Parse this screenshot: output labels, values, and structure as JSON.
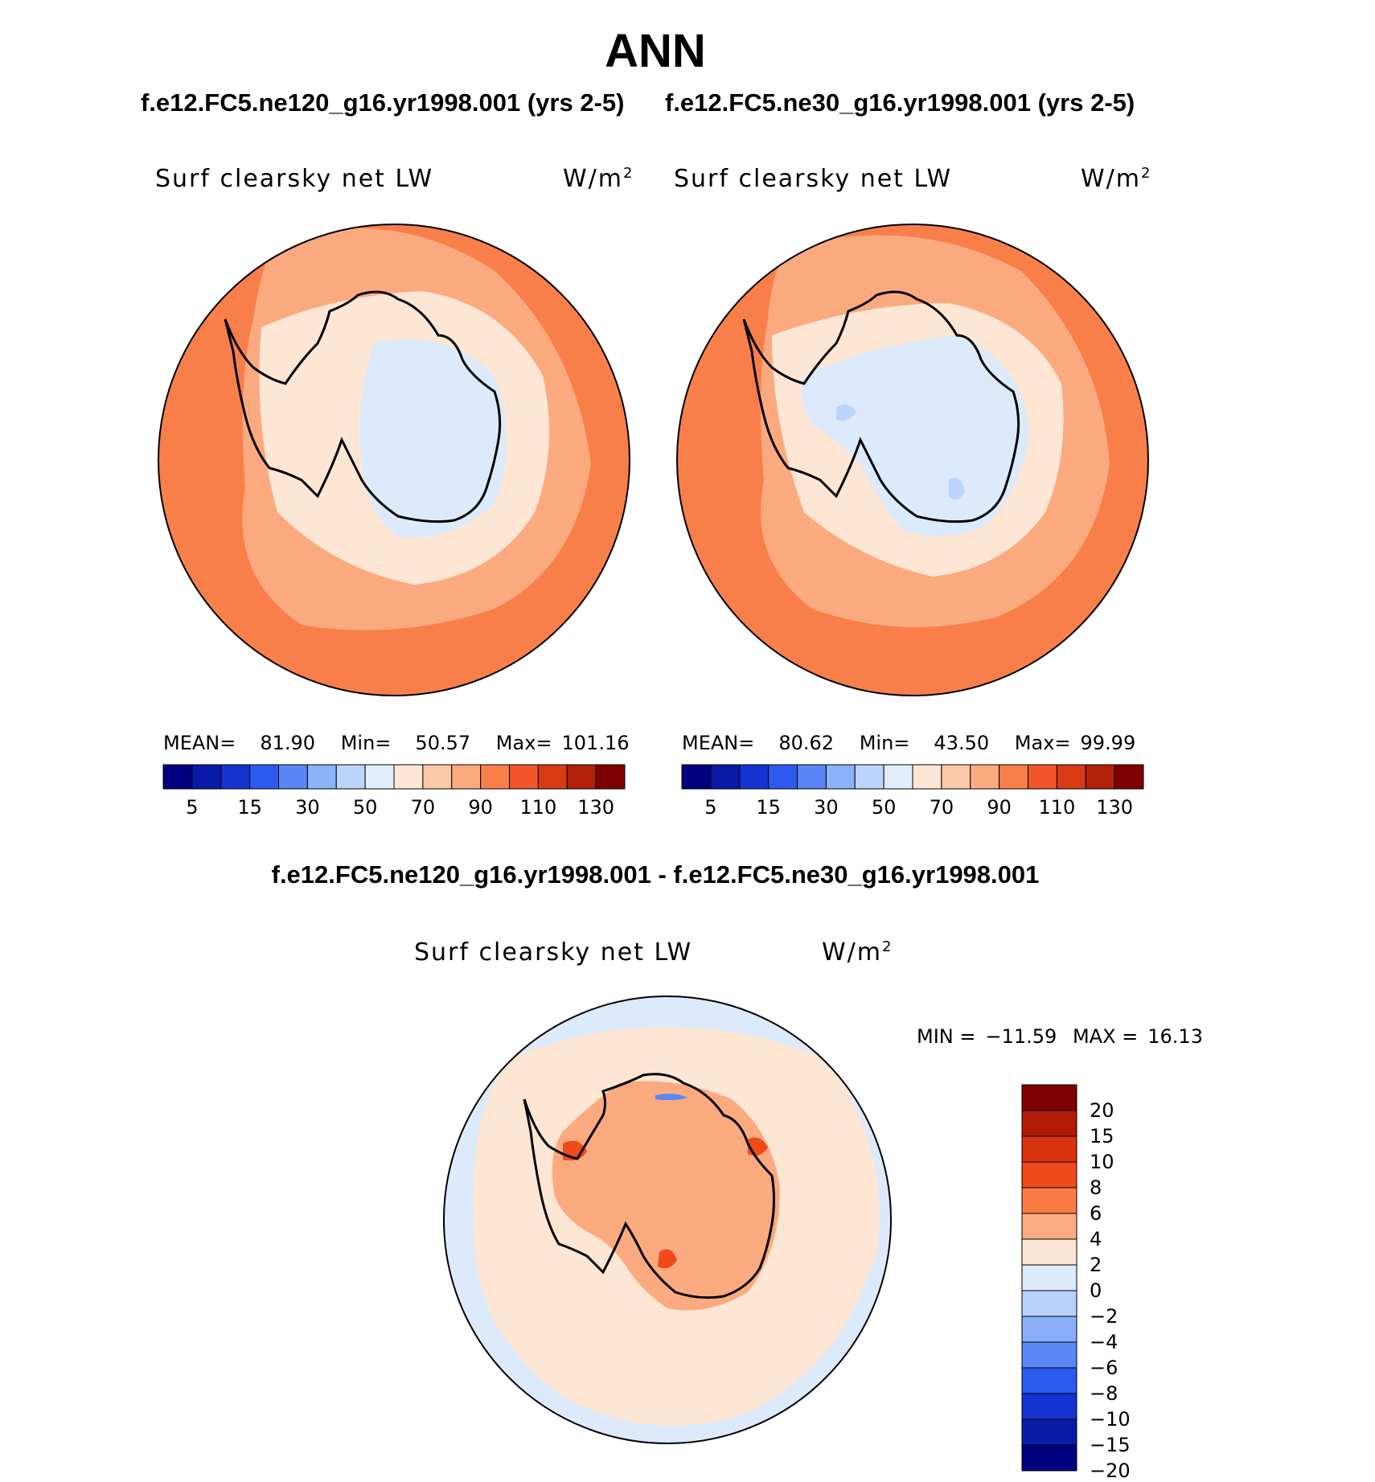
{
  "figure": {
    "title": "ANN",
    "case_left": "f.e12.FC5.ne120_g16.yr1998.001 (yrs 2-5)",
    "case_right": "f.e12.FC5.ne30_g16.yr1998.001 (yrs 2-5)",
    "diff_title": "f.e12.FC5.ne120_g16.yr1998.001 - f.e12.FC5.ne30_g16.yr1998.001"
  },
  "panels": {
    "left": {
      "variable": "Surf clearsky net LW",
      "units": "W/m",
      "units_exp": "2",
      "mean_label": "MEAN=",
      "mean": "81.90",
      "min_label": "Min=",
      "min": "50.57",
      "max_label": "Max=",
      "max": "101.16"
    },
    "right": {
      "variable": "Surf clearsky net LW",
      "units": "W/m",
      "units_exp": "2",
      "mean_label": "MEAN=",
      "mean": "80.62",
      "min_label": "Min=",
      "min": "43.50",
      "max_label": "Max=",
      "max": "99.99"
    },
    "diff": {
      "variable": "Surf clearsky net LW",
      "units": "W/m",
      "units_exp": "2",
      "min_label": "MIN =",
      "min": "−11.59",
      "max_label": "MAX =",
      "max": "16.13"
    }
  },
  "colorbar_main": {
    "labels": [
      "5",
      "15",
      "30",
      "50",
      "70",
      "90",
      "110",
      "130"
    ],
    "colors": [
      "#00007f",
      "#0a1aa8",
      "#1434d2",
      "#2c5af0",
      "#5886f5",
      "#8cb2f8",
      "#bcd4fb",
      "#e2eefd",
      "#fde6d3",
      "#fcc8a8",
      "#fbaa80",
      "#f97f4a",
      "#f2552a",
      "#d83a14",
      "#b2200a",
      "#7f0000"
    ]
  },
  "colorbar_diff": {
    "labels": [
      "20",
      "15",
      "10",
      "8",
      "6",
      "4",
      "2",
      "0",
      "−2",
      "−4",
      "−6",
      "−8",
      "−10",
      "−15",
      "−20"
    ],
    "colors": [
      "#7f0000",
      "#b01c06",
      "#d8330c",
      "#f04a1a",
      "#fa7c44",
      "#fcac84",
      "#fde6d3",
      "#dceafb",
      "#b8d0fa",
      "#88aef8",
      "#5a88f4",
      "#2c5af0",
      "#1434d2",
      "#0a1aa8",
      "#00007f"
    ]
  },
  "colors": {
    "ocean_warm": "#f97f4a",
    "ocean_mid": "#fbaa80",
    "coast_light": "#fde6d3",
    "ice_interior": "#dceafb",
    "ice_cold": "#bcd4fb",
    "diff_ocean": "#fde6d3",
    "diff_far": "#dceafb",
    "diff_land": "#fbaa80",
    "diff_hot": "#f04a1a",
    "coastline": "#000000"
  }
}
